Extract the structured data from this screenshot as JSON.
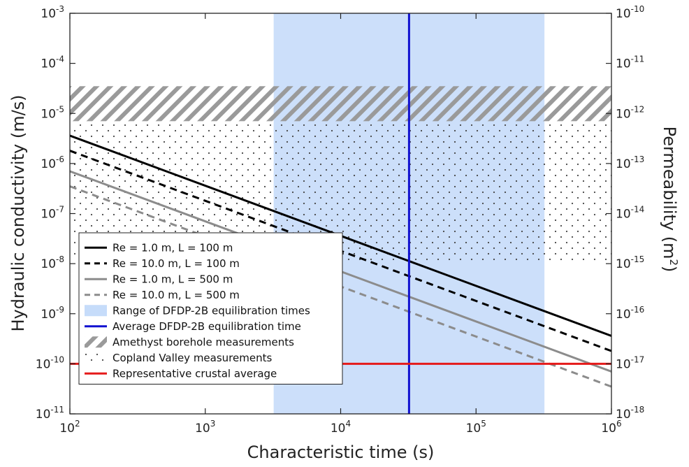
{
  "chart_data": {
    "type": "line",
    "xlabel": "Characteristic time (s)",
    "ylabel": "Hydraulic conductivity (m/s)",
    "y2label": "Permeability (m",
    "y2label_sup": "2",
    "y2label_end": ")",
    "x_scale": "log",
    "y_scale": "log",
    "xlim": [
      100,
      1000000
    ],
    "ylim": [
      1e-11,
      0.001
    ],
    "y2lim": [
      1e-18,
      1e-10
    ],
    "x_ticks": [
      {
        "base": "10",
        "exp": "2",
        "value": 100
      },
      {
        "base": "10",
        "exp": "3",
        "value": 1000
      },
      {
        "base": "10",
        "exp": "4",
        "value": 10000
      },
      {
        "base": "10",
        "exp": "5",
        "value": 100000
      },
      {
        "base": "10",
        "exp": "6",
        "value": 1000000
      }
    ],
    "y_ticks": [
      {
        "base": "10",
        "exp": "-11",
        "value": 1e-11
      },
      {
        "base": "10",
        "exp": "-10",
        "value": 1e-10
      },
      {
        "base": "10",
        "exp": "-9",
        "value": 1e-09
      },
      {
        "base": "10",
        "exp": "-8",
        "value": 1e-08
      },
      {
        "base": "10",
        "exp": "-7",
        "value": 1e-07
      },
      {
        "base": "10",
        "exp": "-6",
        "value": 1e-06
      },
      {
        "base": "10",
        "exp": "-5",
        "value": 1e-05
      },
      {
        "base": "10",
        "exp": "-4",
        "value": 0.0001
      },
      {
        "base": "10",
        "exp": "-3",
        "value": 0.001
      }
    ],
    "y2_ticks": [
      {
        "base": "10",
        "exp": "-18",
        "value": 1e-18
      },
      {
        "base": "10",
        "exp": "-17",
        "value": 1e-17
      },
      {
        "base": "10",
        "exp": "-16",
        "value": 1e-16
      },
      {
        "base": "10",
        "exp": "-15",
        "value": 1e-15
      },
      {
        "base": "10",
        "exp": "-14",
        "value": 1e-14
      },
      {
        "base": "10",
        "exp": "-13",
        "value": 1e-13
      },
      {
        "base": "10",
        "exp": "-12",
        "value": 1e-12
      },
      {
        "base": "10",
        "exp": "-11",
        "value": 1e-11
      },
      {
        "base": "10",
        "exp": "-10",
        "value": 1e-10
      }
    ],
    "series": [
      {
        "name": "Re = 1.0 m, L = 100 m",
        "x": [
          100,
          1000000
        ],
        "y": [
          3.6e-06,
          3.6e-10
        ],
        "color": "#000000",
        "dash": "solid"
      },
      {
        "name": "Re = 10.0 m, L = 100 m",
        "x": [
          100,
          1000000
        ],
        "y": [
          1.8e-06,
          1.8e-10
        ],
        "color": "#000000",
        "dash": "dashed"
      },
      {
        "name": "Re = 1.0 m, L = 500 m",
        "x": [
          100,
          1000000
        ],
        "y": [
          7e-07,
          7e-11
        ],
        "color": "#8c8c8c",
        "dash": "solid"
      },
      {
        "name": "Re = 10.0 m, L = 500 m",
        "x": [
          100,
          1000000
        ],
        "y": [
          3.5e-07,
          3.5e-11
        ],
        "color": "#8c8c8c",
        "dash": "dashed"
      }
    ],
    "regions": [
      {
        "name": "Range of DFDP-2B equilibration times",
        "kind": "x-band",
        "x": [
          3200,
          320000
        ],
        "color": "#c6dcfa"
      },
      {
        "name": "Amethyst borehole measurements",
        "kind": "y-band-hatched",
        "y": [
          7e-06,
          3.5e-05
        ],
        "color": "#9a9a9a"
      },
      {
        "name": "Copland Valley measurements",
        "kind": "y-band-dotted",
        "y": [
          1e-08,
          6.5e-06
        ],
        "color": "#444444"
      }
    ],
    "reference_lines": [
      {
        "name": "Average DFDP-2B equilibration time",
        "kind": "vertical",
        "x": 32000,
        "color": "#1010d0"
      },
      {
        "name": "Representative crustal average",
        "kind": "horizontal",
        "y": 1e-10,
        "color": "#e51a1a"
      }
    ],
    "legend": {
      "placement": "lower-left",
      "entries": [
        {
          "label": "Re = 1.0 m, L = 100 m",
          "style": "line-solid",
          "color": "#000000"
        },
        {
          "label": "Re = 10.0 m, L = 100 m",
          "style": "line-dashed",
          "color": "#000000"
        },
        {
          "label": "Re = 1.0 m, L = 500 m",
          "style": "line-solid",
          "color": "#8c8c8c"
        },
        {
          "label": "Re = 10.0 m, L = 500 m",
          "style": "line-dashed",
          "color": "#8c8c8c"
        },
        {
          "label": "Range of DFDP-2B equilibration times",
          "style": "patch",
          "color": "#c6dcfa"
        },
        {
          "label": "Average DFDP-2B equilibration time",
          "style": "line-solid",
          "color": "#1010d0"
        },
        {
          "label": "Amethyst borehole measurements",
          "style": "hatch",
          "color": "#9a9a9a"
        },
        {
          "label": "Copland Valley measurements",
          "style": "dots",
          "color": "#444444"
        },
        {
          "label": "Representative crustal average",
          "style": "line-solid",
          "color": "#e51a1a"
        }
      ]
    },
    "grid": false
  }
}
